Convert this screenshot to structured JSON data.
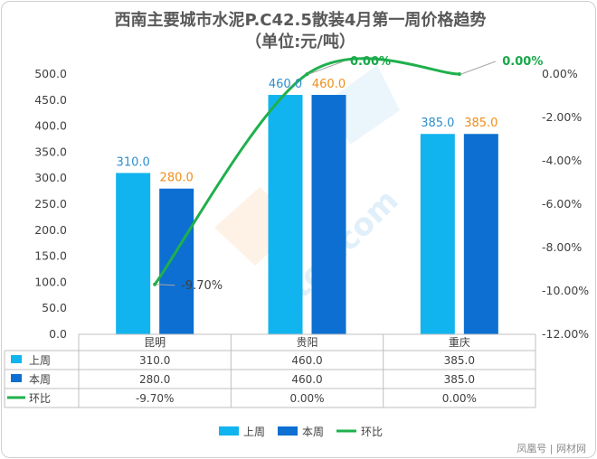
{
  "chart_data": {
    "type": "bar",
    "title": "西南主要城市水泥P.C42.5散装4月第一周价格趋势",
    "subtitle": "（单位:元/吨）",
    "categories": [
      "昆明",
      "贵阳",
      "重庆"
    ],
    "series": [
      {
        "name": "上周",
        "kind": "bar",
        "axis": "left",
        "color": "#11b4ef",
        "values": [
          310.0,
          460.0,
          385.0
        ],
        "labels": [
          "310.0",
          "460.0",
          "385.0"
        ],
        "label_color": "#2e8fce"
      },
      {
        "name": "本周",
        "kind": "bar",
        "axis": "left",
        "color": "#0d6fd1",
        "values": [
          280.0,
          460.0,
          385.0
        ],
        "labels": [
          "280.0",
          "460.0",
          "385.0"
        ],
        "label_color": "#ee8f1a"
      },
      {
        "name": "环比",
        "kind": "line",
        "axis": "right",
        "color": "#1fb04c",
        "values": [
          -9.7,
          0.0,
          0.0
        ],
        "labels": [
          "-9.70%",
          "0.00%",
          "0.00%"
        ],
        "label_color": "#19a84a"
      }
    ],
    "y_left": {
      "ylim": [
        0,
        500
      ],
      "ticks": [
        "0.0",
        "50.0",
        "100.0",
        "150.0",
        "200.0",
        "250.0",
        "300.0",
        "350.0",
        "400.0",
        "450.0",
        "500.0"
      ]
    },
    "y_right": {
      "ylim": [
        -12,
        0
      ],
      "ticks": [
        "0.00%",
        "-2.00%",
        "-4.00%",
        "-6.00%",
        "-8.00%",
        "-10.00%",
        "-12.00%"
      ]
    },
    "data_table": {
      "rows": [
        {
          "name": "上周",
          "cells": [
            "310.0",
            "460.0",
            "385.0"
          ]
        },
        {
          "name": "本周",
          "cells": [
            "280.0",
            "460.0",
            "385.0"
          ]
        },
        {
          "name": "环比",
          "cells": [
            "-9.70%",
            "0.00%",
            "0.00%"
          ]
        }
      ]
    },
    "legend": {
      "position": "bottom",
      "items": [
        "上周",
        "本周",
        "环比"
      ]
    },
    "grid": false,
    "watermark": "zjtcn.com",
    "footer": "凤凰号 | 网材网"
  }
}
